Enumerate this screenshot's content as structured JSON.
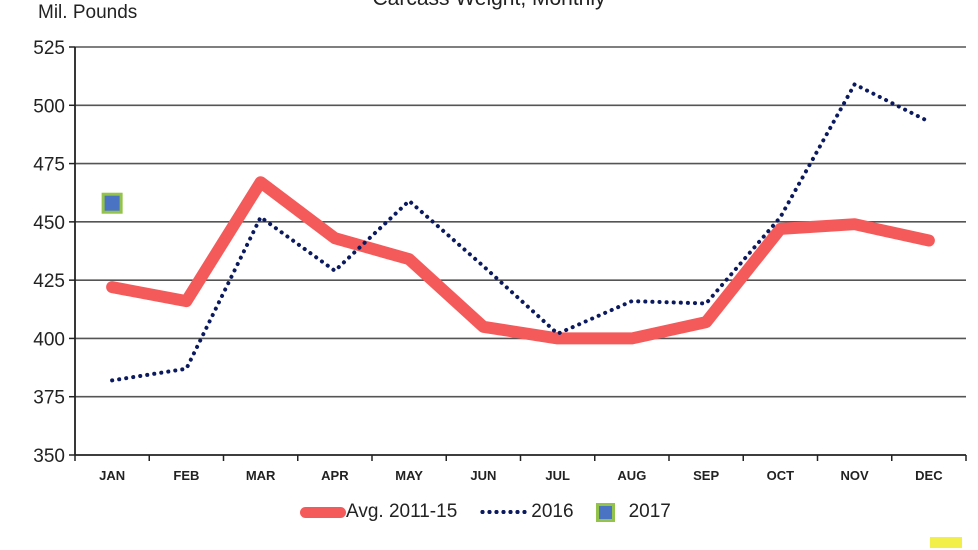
{
  "chart_data": {
    "type": "line",
    "title": "Carcass Weight, Monthly",
    "ylabel": "Mil. Pounds",
    "xlabel": "",
    "ylim": [
      350,
      525
    ],
    "yticks": [
      350,
      375,
      400,
      425,
      450,
      475,
      500,
      525
    ],
    "categories": [
      "JAN",
      "FEB",
      "MAR",
      "APR",
      "MAY",
      "JUN",
      "JUL",
      "AUG",
      "SEP",
      "OCT",
      "NOV",
      "DEC"
    ],
    "grid": true,
    "legend_position": "bottom",
    "series": [
      {
        "name": "Avg. 2011-15",
        "color": "#f55a5a",
        "style": "thick-solid",
        "values": [
          422,
          416,
          467,
          443,
          434,
          405,
          400,
          400,
          407,
          447,
          449,
          442
        ]
      },
      {
        "name": "2016",
        "color": "#0b1a5e",
        "style": "dotted",
        "values": [
          382,
          387,
          452,
          429,
          459,
          431,
          402,
          416,
          415,
          452,
          509,
          493
        ]
      },
      {
        "name": "2017",
        "color": "#4a73c4",
        "border_color": "#93c34a",
        "style": "marker",
        "values": [
          458,
          null,
          null,
          null,
          null,
          null,
          null,
          null,
          null,
          null,
          null,
          null
        ]
      }
    ]
  }
}
